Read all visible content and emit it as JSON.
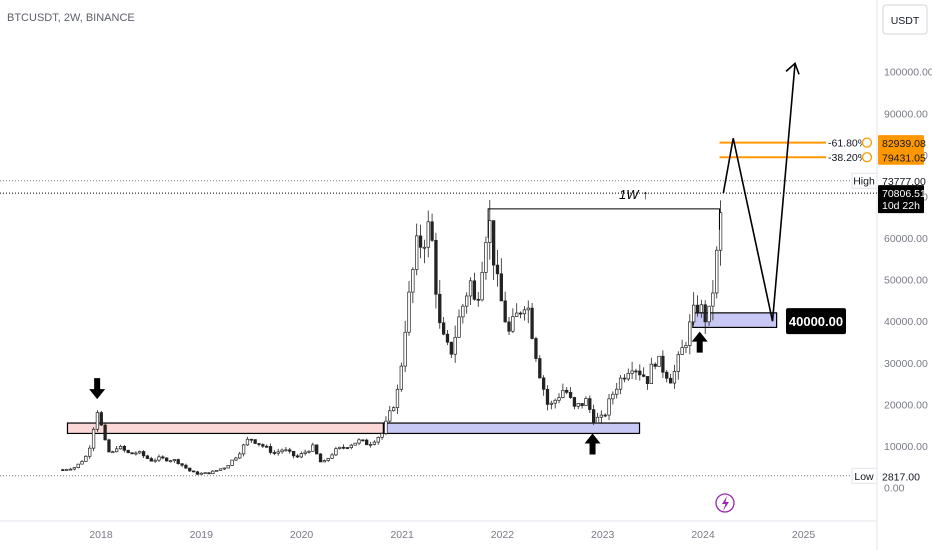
{
  "header": {
    "symbol": "BTCUSDT, 2W, BINANCE"
  },
  "currency_button": {
    "label": "USDT"
  },
  "colors": {
    "bull": "#089981",
    "bear": "#f23645",
    "candle": "#222222",
    "accent_orange": "#ff9800",
    "support_red_fill": "#fbd7d7",
    "support_blue_fill": "#c8c8f4",
    "axis_text": "#787b86",
    "grid": "#e0e3eb",
    "dark_tag": "#000000"
  },
  "chart_data": {
    "type": "candlestick",
    "title": "BTCUSDT, 2W, BINANCE",
    "x_ticks": [
      "2018",
      "2019",
      "2020",
      "2021",
      "2022",
      "2023",
      "2024",
      "2025"
    ],
    "y_ticks": [
      "100000.00",
      "90000.00",
      "80000.00",
      "70000.00",
      "60000.00",
      "50000.00",
      "40000.00",
      "30000.00",
      "20000.00",
      "10000.00",
      "0.00"
    ],
    "ylim": [
      0,
      110000
    ],
    "xlim": [
      "2017-06-01",
      "2025-12-31"
    ],
    "close_path": [
      [
        "2017-08-15",
        4300
      ],
      [
        "2017-10-01",
        4900
      ],
      [
        "2017-11-15",
        8000
      ],
      [
        "2017-12-18",
        19000
      ],
      [
        "2018-01-15",
        11000
      ],
      [
        "2018-02-05",
        7500
      ],
      [
        "2018-03-01",
        10000
      ],
      [
        "2018-04-15",
        8000
      ],
      [
        "2018-05-15",
        8500
      ],
      [
        "2018-07-01",
        6500
      ],
      [
        "2018-08-01",
        7000
      ],
      [
        "2018-10-01",
        6500
      ],
      [
        "2018-11-20",
        4000
      ],
      [
        "2018-12-15",
        3300
      ],
      [
        "2019-02-01",
        3500
      ],
      [
        "2019-04-01",
        5000
      ],
      [
        "2019-05-15",
        8000
      ],
      [
        "2019-06-25",
        12000
      ],
      [
        "2019-08-01",
        10500
      ],
      [
        "2019-09-25",
        8200
      ],
      [
        "2019-10-25",
        9200
      ],
      [
        "2019-12-15",
        7200
      ],
      [
        "2020-02-10",
        9800
      ],
      [
        "2020-03-15",
        5500
      ],
      [
        "2020-05-01",
        8800
      ],
      [
        "2020-07-25",
        11200
      ],
      [
        "2020-09-01",
        10500
      ],
      [
        "2020-10-20",
        13000
      ],
      [
        "2020-11-20",
        18000
      ],
      [
        "2020-12-20",
        24000
      ],
      [
        "2021-01-10",
        38000
      ],
      [
        "2021-02-20",
        57000
      ],
      [
        "2021-04-14",
        63000
      ],
      [
        "2021-05-20",
        37000
      ],
      [
        "2021-06-25",
        32000
      ],
      [
        "2021-07-25",
        40000
      ],
      [
        "2021-09-05",
        50000
      ],
      [
        "2021-09-25",
        43000
      ],
      [
        "2021-11-10",
        66000
      ],
      [
        "2021-12-15",
        48000
      ],
      [
        "2022-01-25",
        37000
      ],
      [
        "2022-03-28",
        46000
      ],
      [
        "2022-05-12",
        29000
      ],
      [
        "2022-06-18",
        19000
      ],
      [
        "2022-08-15",
        24000
      ],
      [
        "2022-09-20",
        19000
      ],
      [
        "2022-11-05",
        21000
      ],
      [
        "2022-11-25",
        16500
      ],
      [
        "2023-01-01",
        16500
      ],
      [
        "2023-02-15",
        24000
      ],
      [
        "2023-04-15",
        30000
      ],
      [
        "2023-06-15",
        26000
      ],
      [
        "2023-07-10",
        31000
      ],
      [
        "2023-09-10",
        26000
      ],
      [
        "2023-10-25",
        34500
      ],
      [
        "2023-12-10",
        44000
      ],
      [
        "2024-01-20",
        40000
      ],
      [
        "2024-02-15",
        52000
      ],
      [
        "2024-03-01",
        62000
      ],
      [
        "2024-03-15",
        70806.51
      ]
    ],
    "high_line": {
      "label": "High",
      "value": 73777.0
    },
    "low_line": {
      "label": "Low",
      "value": 2817.0
    },
    "last_price": {
      "value": "70806.51",
      "countdown": "10d 22h",
      "y": 70806.51
    },
    "fib_levels": [
      {
        "label": "-61.80%",
        "price": "82939.08",
        "y": 82939.08
      },
      {
        "label": "-38.20%",
        "price": "79431.05",
        "y": 79431.05
      }
    ],
    "support_zones": [
      {
        "from": "2017-09-01",
        "to": "2020-10-25",
        "low": 13000,
        "high": 15500,
        "fill": "red"
      },
      {
        "from": "2020-10-25",
        "to": "2023-05-15",
        "low": 13000,
        "high": 15500,
        "fill": "blue"
      },
      {
        "from": "2023-11-25",
        "to": "2024-09-25",
        "low": 38500,
        "high": 42000,
        "fill": "blue"
      }
    ],
    "zone_label": {
      "text": "40000.00",
      "y": 40000
    },
    "annotation_1w": {
      "text": "1W ↑",
      "from": [
        "2021-11-10",
        67000
      ],
      "to": [
        "2024-03-01",
        67000
      ]
    },
    "projection": [
      [
        "2024-03-15",
        70806.51
      ],
      [
        "2024-04-20",
        84000
      ],
      [
        "2024-09-10",
        40000
      ],
      [
        "2024-12-01",
        102000
      ]
    ],
    "markers": [
      {
        "kind": "arrow-down",
        "at": [
          "2017-12-18",
          21000
        ]
      },
      {
        "kind": "arrow-up",
        "at": [
          "2022-11-25",
          13000
        ]
      },
      {
        "kind": "arrow-up",
        "at": [
          "2023-12-20",
          37500
        ]
      }
    ],
    "grid": false
  }
}
